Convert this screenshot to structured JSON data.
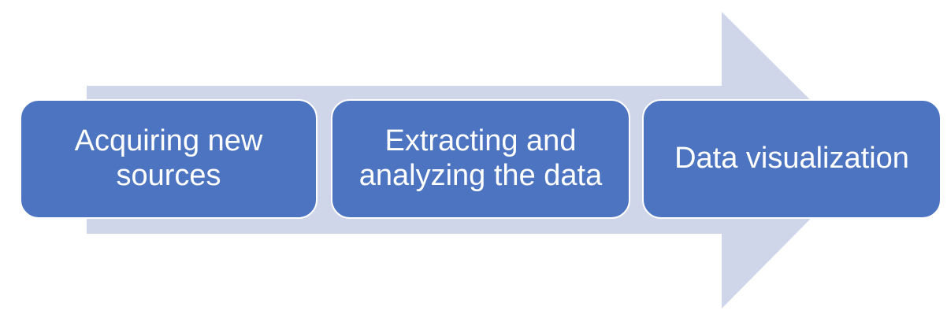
{
  "colors": {
    "arrow_fill": "#d0d6e9",
    "step_fill": "#4d74c1",
    "step_border": "#ffffff",
    "step_text": "#ffffff"
  },
  "process": {
    "steps": [
      {
        "label": "Acquiring new sources"
      },
      {
        "label": "Extracting and analyzing the data"
      },
      {
        "label": "Data visualization"
      }
    ]
  }
}
